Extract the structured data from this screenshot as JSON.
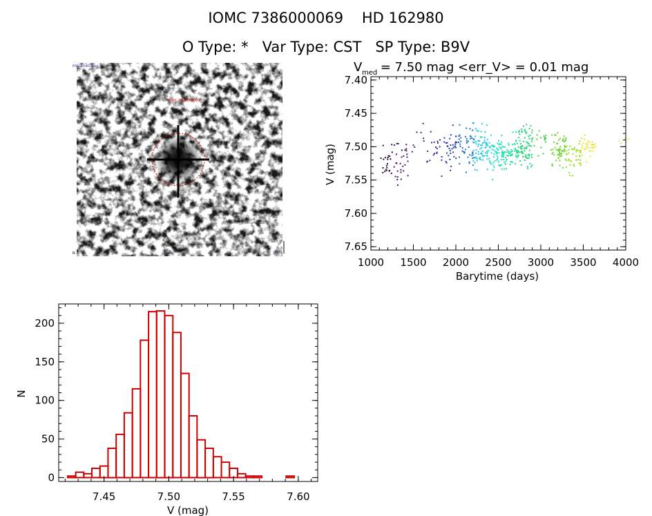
{
  "header": {
    "line1": "IOMC 7386000069    HD 162980",
    "line2": "O Type: *   Var Type: CST   SP Type: B9V"
  },
  "finder": {
    "label_top_left": "POSS2/UKST red",
    "label_near_star": "IOMC 7386000069",
    "label_bottom_left": "N",
    "label_bottom_center": "E",
    "label_bottom_right": "1'"
  },
  "chart_data": [
    {
      "type": "scatter",
      "title_main": "V",
      "title_sub": "med",
      "title_rest": " = 7.50 mag <err_V> = 0.01 mag",
      "xlabel": "Barytime (days)",
      "ylabel": "V (mag)",
      "xlim": [
        1000,
        4000
      ],
      "ylim": [
        7.655,
        7.395
      ],
      "xticks": [
        "1000",
        "1500",
        "2000",
        "2500",
        "3000",
        "3500",
        "4000"
      ],
      "yticks": [
        "7.40",
        "7.45",
        "7.50",
        "7.55",
        "7.60",
        "7.65"
      ],
      "series": [
        {
          "name": "1180",
          "x": 1180,
          "center": 7.52,
          "spread": 0.05,
          "n": 22,
          "color": "#2a0a3a"
        },
        {
          "name": "1340",
          "x": 1340,
          "center": 7.52,
          "spread": 0.055,
          "n": 30,
          "color": "#4a1070"
        },
        {
          "name": "1560",
          "x": 1560,
          "center": 7.49,
          "spread": 0.04,
          "n": 8,
          "color": "#4b1a80"
        },
        {
          "name": "1740",
          "x": 1740,
          "center": 7.51,
          "spread": 0.05,
          "n": 20,
          "color": "#3c2a90"
        },
        {
          "name": "1940",
          "x": 1940,
          "center": 7.5,
          "spread": 0.055,
          "n": 36,
          "color": "#2436b0"
        },
        {
          "name": "2120",
          "x": 2120,
          "center": 7.5,
          "spread": 0.055,
          "n": 45,
          "color": "#1a6fd0"
        },
        {
          "name": "2280",
          "x": 2280,
          "center": 7.5,
          "spread": 0.055,
          "n": 70,
          "color": "#1cc8e0"
        },
        {
          "name": "2450",
          "x": 2450,
          "center": 7.51,
          "spread": 0.05,
          "n": 60,
          "color": "#1ee0c0"
        },
        {
          "name": "2620",
          "x": 2620,
          "center": 7.51,
          "spread": 0.045,
          "n": 60,
          "color": "#1ee0a0"
        },
        {
          "name": "2800",
          "x": 2800,
          "center": 7.5,
          "spread": 0.055,
          "n": 85,
          "color": "#22d87a"
        },
        {
          "name": "2970",
          "x": 2970,
          "center": 7.49,
          "spread": 0.035,
          "n": 18,
          "color": "#40d040"
        },
        {
          "name": "3200",
          "x": 3200,
          "center": 7.5,
          "spread": 0.045,
          "n": 60,
          "color": "#6ad82a"
        },
        {
          "name": "3380",
          "x": 3380,
          "center": 7.51,
          "spread": 0.045,
          "n": 45,
          "color": "#a0e020"
        },
        {
          "name": "3550",
          "x": 3550,
          "center": 7.5,
          "spread": 0.03,
          "n": 30,
          "color": "#e4e820"
        },
        {
          "name": "3980",
          "x": 3980,
          "center": 7.49,
          "spread": 0.01,
          "n": 4,
          "color": "#f0f040"
        }
      ]
    },
    {
      "type": "bar",
      "xlabel": "V (mag)",
      "ylabel": "N",
      "xlim": [
        7.415,
        7.615
      ],
      "ylim": [
        -5,
        225
      ],
      "xticks": [
        "7.45",
        "7.50",
        "7.55",
        "7.60"
      ],
      "yticks": [
        "0",
        "50",
        "100",
        "150",
        "200"
      ],
      "bin_width": 0.00625,
      "bin_starts": [
        7.4219,
        7.4281,
        7.4344,
        7.4406,
        7.4469,
        7.4531,
        7.4594,
        7.4656,
        7.4719,
        7.4781,
        7.4844,
        7.4906,
        7.4969,
        7.5031,
        7.5094,
        7.5156,
        7.5219,
        7.5281,
        7.5344,
        7.5406,
        7.5469,
        7.5531,
        7.5594,
        7.5656,
        7.5719,
        7.5781,
        7.5844,
        7.5906,
        7.5969
      ],
      "values": [
        2,
        7,
        5,
        12,
        15,
        38,
        56,
        84,
        115,
        178,
        215,
        216,
        210,
        188,
        135,
        80,
        49,
        38,
        27,
        20,
        12,
        5,
        2,
        2,
        0,
        0,
        0,
        2,
        0
      ],
      "color": "#cc0000"
    }
  ]
}
